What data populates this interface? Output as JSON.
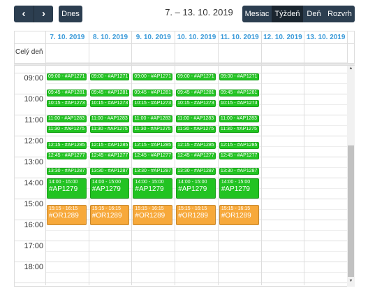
{
  "toolbar": {
    "today_button": "Dnes",
    "title": "7. – 13. 10. 2019",
    "views": [
      "Mesiac",
      "Týždeň",
      "Deň",
      "Rozvrh"
    ]
  },
  "all_day_label": "Celý deň",
  "time_labels": [
    "09:00",
    "10:00",
    "11:00",
    "12:00",
    "13:00",
    "14:00",
    "15:00",
    "16:00",
    "17:00",
    "18:00"
  ],
  "days": [
    {
      "date": "7. 10. 2019",
      "events": [
        {
          "text": "09:00 - #AP1271",
          "color": "#22c322"
        },
        {
          "text": "09:45 - #AP1281",
          "color": "#22c322"
        },
        {
          "text": "10:15 - #AP1273",
          "color": "#22c322"
        },
        {
          "text": "11:00 - #AP1283",
          "color": "#22c322"
        },
        {
          "text": "11:30 - #AP1275",
          "color": "#22c322"
        },
        {
          "text": "12:15 - #AP1285",
          "color": "#22c322"
        },
        {
          "text": "12:45 - #AP1277",
          "color": "#22c322"
        },
        {
          "text": "13:30 - #AP1287",
          "color": "#22c322"
        },
        {
          "time": "14:00 - 15:00",
          "title": "#AP1279",
          "color": "#22c322"
        },
        {
          "time": "15:15 - 16:15",
          "title": "#OR1289",
          "color": "#f7a93b"
        }
      ]
    },
    {
      "date": "8. 10. 2019",
      "events": [
        {
          "text": "09:00 - #AP1271",
          "color": "#22c322"
        },
        {
          "text": "09:45 - #AP1281",
          "color": "#22c322"
        },
        {
          "text": "10:15 - #AP1273",
          "color": "#22c322"
        },
        {
          "text": "11:00 - #AP1283",
          "color": "#22c322"
        },
        {
          "text": "11:30 - #AP1275",
          "color": "#22c322"
        },
        {
          "text": "12:15 - #AP1285",
          "color": "#22c322"
        },
        {
          "text": "12:45 - #AP1277",
          "color": "#22c322"
        },
        {
          "text": "13:30 - #AP1287",
          "color": "#22c322"
        },
        {
          "time": "14:00 - 15:00",
          "title": "#AP1279",
          "color": "#22c322"
        },
        {
          "time": "15:15 - 16:15",
          "title": "#OR1289",
          "color": "#f7a93b"
        }
      ]
    },
    {
      "date": "9. 10. 2019",
      "events": [
        {
          "text": "09:00 - #AP1271",
          "color": "#22c322"
        },
        {
          "text": "09:45 - #AP1281",
          "color": "#22c322"
        },
        {
          "text": "10:15 - #AP1273",
          "color": "#22c322"
        },
        {
          "text": "11:00 - #AP1283",
          "color": "#22c322"
        },
        {
          "text": "11:30 - #AP1275",
          "color": "#22c322"
        },
        {
          "text": "12:15 - #AP1285",
          "color": "#22c322"
        },
        {
          "text": "12:45 - #AP1277",
          "color": "#22c322"
        },
        {
          "text": "13:30 - #AP1287",
          "color": "#22c322"
        },
        {
          "time": "14:00 - 15:00",
          "title": "#AP1279",
          "color": "#22c322"
        },
        {
          "time": "15:15 - 16:15",
          "title": "#OR1289",
          "color": "#f7a93b"
        }
      ]
    },
    {
      "date": "10. 10. 2019",
      "events": [
        {
          "text": "09:00 - #AP1271",
          "color": "#22c322"
        },
        {
          "text": "09:45 - #AP1281",
          "color": "#22c322"
        },
        {
          "text": "10:15 - #AP1273",
          "color": "#22c322"
        },
        {
          "text": "11:00 - #AP1283",
          "color": "#22c322"
        },
        {
          "text": "11:30 - #AP1275",
          "color": "#22c322"
        },
        {
          "text": "12:15 - #AP1285",
          "color": "#22c322"
        },
        {
          "text": "12:45 - #AP1277",
          "color": "#22c322"
        },
        {
          "text": "13:30 - #AP1287",
          "color": "#22c322"
        },
        {
          "time": "14:00 - 15:00",
          "title": "#AP1279",
          "color": "#22c322"
        },
        {
          "time": "15:15 - 16:15",
          "title": "#OR1289",
          "color": "#f7a93b"
        }
      ]
    },
    {
      "date": "11. 10. 2019",
      "events": [
        {
          "text": "09:00 - #AP1271",
          "color": "#22c322"
        },
        {
          "text": "09:45 - #AP1281",
          "color": "#22c322"
        },
        {
          "text": "10:15 - #AP1273",
          "color": "#22c322"
        },
        {
          "text": "11:00 - #AP1283",
          "color": "#22c322"
        },
        {
          "text": "11:30 - #AP1275",
          "color": "#22c322"
        },
        {
          "text": "12:15 - #AP1285",
          "color": "#22c322"
        },
        {
          "text": "12:45 - #AP1277",
          "color": "#22c322"
        },
        {
          "text": "13:30 - #AP1287",
          "color": "#22c322"
        },
        {
          "time": "14:00 - 15:00",
          "title": "#AP1279",
          "color": "#22c322"
        },
        {
          "time": "15:15 - 16:15",
          "title": "#OR1289",
          "color": "#f7a93b"
        }
      ]
    },
    {
      "date": "12. 10. 2019",
      "events": []
    },
    {
      "date": "13. 10. 2019",
      "events": []
    }
  ]
}
